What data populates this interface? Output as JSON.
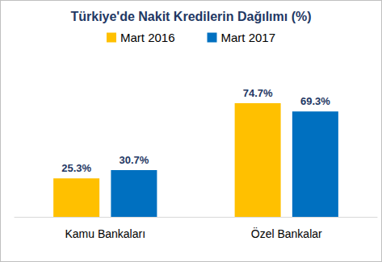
{
  "chart_data": {
    "type": "bar",
    "title": "Türkiye'de Nakit Kredilerin Dağılımı (%)",
    "categories": [
      "Kamu Bankaları",
      "Özel Bankalar"
    ],
    "series": [
      {
        "name": "Mart 2016",
        "color": "#ffc000",
        "values": [
          25.3,
          74.7
        ],
        "value_labels": [
          "25.3%",
          "74.7%"
        ]
      },
      {
        "name": "Mart 2017",
        "color": "#0070c0",
        "values": [
          30.7,
          69.3
        ],
        "value_labels": [
          "30.7%",
          "69.3%"
        ]
      }
    ],
    "legend": "top",
    "data_labels": true,
    "tick_labels": "x",
    "grid": false
  }
}
